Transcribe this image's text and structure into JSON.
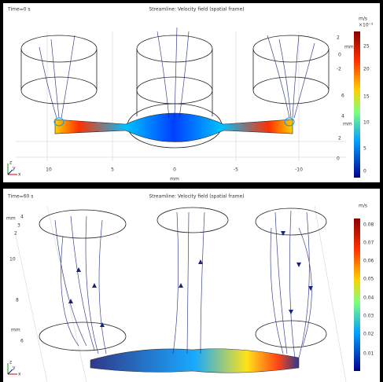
{
  "panels": [
    {
      "time": "Time=0 s",
      "title": "Streamline: Velocity field (spatial frame)",
      "unit": "m/s",
      "exponent": "×10⁻³",
      "colorbar_ticks": [
        "25",
        "20",
        "15",
        "10",
        "5",
        "0"
      ],
      "x_ticks": [
        "10",
        "5",
        "0",
        "-5",
        "-10"
      ],
      "x_unit": "mm",
      "side_ticks": [
        "2",
        "mm",
        "0",
        "-2",
        "6",
        "4",
        "mm",
        "2",
        "0"
      ],
      "triad": [
        "z",
        "y",
        "x"
      ]
    },
    {
      "time": "Time=60 s",
      "title": "Streamline: Velocity field (spatial frame)",
      "unit": "m/s",
      "colorbar_ticks": [
        "0.08",
        "0.07",
        "0.06",
        "0.05",
        "0.04",
        "0.03",
        "0.02",
        "0.01"
      ],
      "side_ticks": [
        "mm",
        "4",
        "3",
        "2",
        "10",
        "8",
        "mm",
        "6"
      ],
      "triad": [
        "z",
        "y",
        "x"
      ]
    }
  ]
}
